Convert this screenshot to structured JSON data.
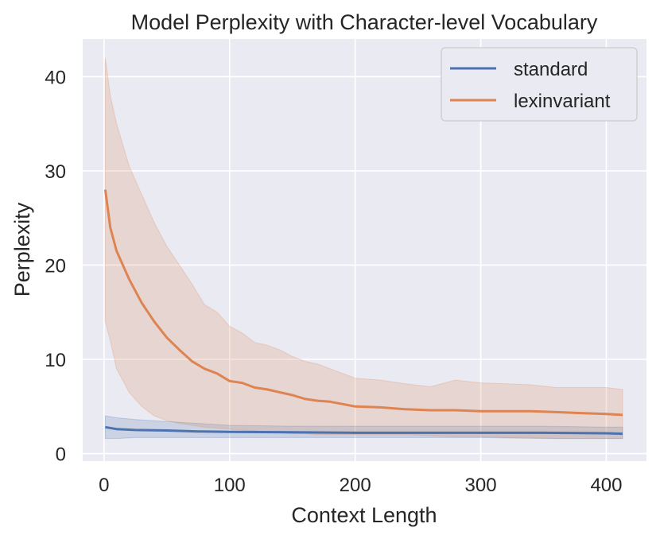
{
  "chart_data": {
    "type": "line",
    "title": "Model Perplexity with Character-level Vocabulary",
    "xlabel": "Context Length",
    "ylabel": "Perplexity",
    "xlim": [
      -17,
      432
    ],
    "ylim": [
      -0.8,
      44
    ],
    "xticks": [
      0,
      100,
      200,
      300,
      400
    ],
    "yticks": [
      0,
      10,
      20,
      30,
      40
    ],
    "grid": true,
    "legend_position": "top-right",
    "colors": {
      "background": "#eaeaf2",
      "grid": "#ffffff",
      "standard": "#4c72b0",
      "lexinvariant": "#dd8452"
    },
    "series": [
      {
        "name": "standard",
        "color": "#4c72b0",
        "x": [
          1,
          10,
          25,
          50,
          75,
          100,
          150,
          200,
          250,
          300,
          350,
          400,
          413
        ],
        "y": [
          2.8,
          2.6,
          2.5,
          2.45,
          2.35,
          2.3,
          2.25,
          2.2,
          2.2,
          2.2,
          2.2,
          2.15,
          2.1
        ],
        "lower": [
          1.6,
          1.6,
          1.7,
          1.7,
          1.7,
          1.7,
          1.7,
          1.7,
          1.7,
          1.7,
          1.6,
          1.6,
          1.6
        ],
        "upper": [
          4.0,
          3.8,
          3.6,
          3.4,
          3.2,
          3.0,
          2.9,
          2.9,
          2.9,
          2.9,
          2.9,
          2.8,
          2.8
        ]
      },
      {
        "name": "lexinvariant",
        "color": "#dd8452",
        "x": [
          1,
          5,
          10,
          20,
          30,
          40,
          50,
          60,
          70,
          80,
          90,
          100,
          110,
          120,
          130,
          140,
          150,
          160,
          170,
          180,
          200,
          220,
          240,
          260,
          280,
          300,
          320,
          340,
          360,
          380,
          400,
          413
        ],
        "y": [
          28.0,
          24.0,
          21.5,
          18.5,
          16.0,
          14.0,
          12.3,
          11.0,
          9.8,
          9.0,
          8.5,
          7.7,
          7.5,
          7.0,
          6.8,
          6.5,
          6.2,
          5.8,
          5.6,
          5.5,
          5.0,
          4.9,
          4.7,
          4.6,
          4.6,
          4.5,
          4.5,
          4.5,
          4.4,
          4.3,
          4.2,
          4.1
        ],
        "lower": [
          14.0,
          12.0,
          9.0,
          6.5,
          5.0,
          4.0,
          3.5,
          3.2,
          3.0,
          2.8,
          2.7,
          2.6,
          2.5,
          2.4,
          2.3,
          2.2,
          2.1,
          2.1,
          2.0,
          2.0,
          2.0,
          2.0,
          2.0,
          1.9,
          1.8,
          1.8,
          1.7,
          1.7,
          1.6,
          1.6,
          1.6,
          1.6
        ],
        "upper": [
          42.0,
          38.0,
          35.0,
          30.5,
          27.5,
          24.5,
          22.0,
          20.0,
          18.0,
          15.8,
          15.0,
          13.5,
          12.8,
          11.8,
          11.5,
          11.0,
          10.3,
          9.8,
          9.5,
          9.0,
          8.0,
          7.8,
          7.4,
          7.1,
          7.8,
          7.5,
          7.4,
          7.3,
          7.0,
          7.0,
          7.0,
          6.8
        ]
      }
    ]
  }
}
